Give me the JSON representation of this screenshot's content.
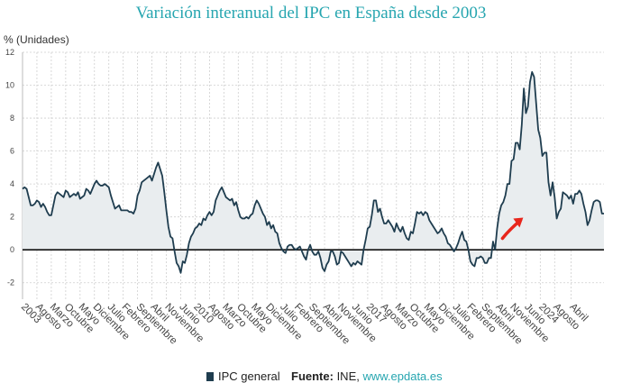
{
  "chart_data": {
    "type": "area",
    "title": "Variación interanual del IPC en España desde 2003",
    "ylabel": "% (Unidades)",
    "xlabel": "",
    "ylim": [
      -3,
      12
    ],
    "yticks": [
      "-2",
      "0",
      "2",
      "4",
      "6",
      "8",
      "10",
      "12"
    ],
    "ytick_values": [
      -2,
      0,
      2,
      4,
      6,
      8,
      10,
      12
    ],
    "grid": true,
    "series": [
      {
        "name": "IPC general",
        "color": "#1f3d4f",
        "start": "2003-01",
        "values": [
          3.7,
          3.8,
          3.7,
          3.2,
          2.7,
          2.7,
          2.8,
          3.0,
          2.9,
          2.6,
          2.8,
          2.6,
          2.3,
          2.1,
          2.1,
          2.7,
          3.3,
          3.5,
          3.4,
          3.3,
          3.2,
          3.6,
          3.5,
          3.2,
          3.3,
          3.4,
          3.3,
          3.5,
          3.1,
          3.2,
          3.3,
          3.7,
          3.6,
          3.4,
          3.7,
          4.0,
          4.2,
          4.0,
          3.9,
          3.9,
          4.0,
          3.9,
          3.8,
          3.3,
          2.9,
          2.5,
          2.6,
          2.7,
          2.4,
          2.4,
          2.4,
          2.4,
          2.3,
          2.3,
          2.2,
          2.5,
          3.3,
          3.6,
          4.1,
          4.2,
          4.3,
          4.4,
          4.5,
          4.2,
          4.6,
          5.0,
          5.3,
          4.9,
          4.5,
          3.5,
          2.4,
          1.4,
          0.8,
          0.7,
          -0.1,
          -0.8,
          -1.0,
          -1.4,
          -0.7,
          -0.8,
          -0.3,
          0.4,
          0.8,
          1.0,
          1.3,
          1.4,
          1.6,
          1.5,
          1.9,
          1.8,
          2.1,
          2.3,
          2.1,
          2.3,
          3.0,
          3.3,
          3.6,
          3.8,
          3.5,
          3.2,
          3.1,
          3.0,
          3.1,
          2.7,
          2.9,
          2.4,
          2.0,
          1.9,
          1.9,
          2.0,
          1.9,
          2.1,
          2.2,
          2.7,
          3.0,
          2.8,
          2.5,
          2.2,
          2.0,
          1.5,
          1.7,
          1.3,
          1.5,
          1.1,
          1.0,
          0.4,
          0.1,
          -0.1,
          -0.2,
          0.2,
          0.3,
          0.3,
          0.1,
          0.0,
          0.1,
          0.2,
          -0.1,
          -0.4,
          -0.6,
          0.0,
          0.3,
          -0.1,
          -0.3,
          -0.3,
          -0.1,
          -0.5,
          -1.1,
          -1.3,
          -0.9,
          -0.7,
          -0.1,
          -0.1,
          -0.4,
          -0.9,
          -0.8,
          -0.1,
          -0.2,
          -0.4,
          -0.6,
          -0.8,
          -1.0,
          -0.8,
          -0.9,
          -0.7,
          -0.8,
          -0.9,
          0.0,
          0.6,
          1.3,
          1.4,
          2.1,
          3.0,
          3.0,
          2.3,
          2.5,
          2.0,
          1.6,
          1.6,
          1.8,
          1.6,
          1.4,
          1.1,
          1.6,
          1.3,
          1.1,
          1.4,
          1.0,
          0.7,
          0.6,
          1.1,
          1.0,
          1.6,
          2.3,
          2.2,
          2.3,
          2.1,
          2.3,
          2.2,
          1.8,
          1.6,
          1.4,
          1.2,
          1.0,
          1.1,
          1.3,
          1.0,
          0.8,
          0.4,
          0.3,
          0.1,
          -0.1,
          0.1,
          0.4,
          0.8,
          1.1,
          0.6,
          0.5,
          0.0,
          -0.7,
          -0.9,
          -1.0,
          -0.5,
          -0.5,
          -0.4,
          -0.5,
          -0.8,
          -0.8,
          -0.5,
          -0.5,
          0.5,
          0.0,
          1.3,
          2.2,
          2.7,
          2.9,
          3.3,
          4.0,
          4.0,
          5.4,
          5.5,
          6.5,
          6.5,
          6.1,
          7.6,
          9.8,
          8.3,
          8.7,
          10.2,
          10.8,
          10.5,
          8.9,
          7.3,
          6.8,
          5.7,
          5.9,
          5.9,
          4.1,
          3.3,
          4.1,
          3.2,
          1.9,
          2.3,
          2.5,
          3.5,
          3.4,
          3.3,
          3.1,
          3.3,
          2.8,
          3.4,
          3.4,
          3.6,
          3.4,
          2.8,
          2.3,
          1.5,
          1.8,
          2.4,
          2.9,
          3.0,
          3.0,
          2.9,
          2.2,
          2.2
        ]
      }
    ],
    "x_tick_labels": [
      {
        "label": "2003",
        "date": "2003-01"
      },
      {
        "label": "Agosto",
        "date": "2003-08"
      },
      {
        "label": "Marzo",
        "date": "2004-03"
      },
      {
        "label": "Octubre",
        "date": "2004-10"
      },
      {
        "label": "Mayo",
        "date": "2005-05"
      },
      {
        "label": "Diciembre",
        "date": "2005-12"
      },
      {
        "label": "Julio",
        "date": "2006-07"
      },
      {
        "label": "Febrero",
        "date": "2007-02"
      },
      {
        "label": "Septiembre",
        "date": "2007-09"
      },
      {
        "label": "Abril",
        "date": "2008-04"
      },
      {
        "label": "Noviembre",
        "date": "2008-11"
      },
      {
        "label": "Junio",
        "date": "2009-06"
      },
      {
        "label": "2010",
        "date": "2010-01"
      },
      {
        "label": "Agosto",
        "date": "2010-08"
      },
      {
        "label": "Marzo",
        "date": "2011-03"
      },
      {
        "label": "Octubre",
        "date": "2011-10"
      },
      {
        "label": "Mayo",
        "date": "2012-05"
      },
      {
        "label": "Diciembre",
        "date": "2012-12"
      },
      {
        "label": "Julio",
        "date": "2013-07"
      },
      {
        "label": "Febrero",
        "date": "2014-02"
      },
      {
        "label": "Septiembre",
        "date": "2014-09"
      },
      {
        "label": "Abril",
        "date": "2015-04"
      },
      {
        "label": "Noviembre",
        "date": "2015-11"
      },
      {
        "label": "Junio",
        "date": "2016-06"
      },
      {
        "label": "2017",
        "date": "2017-01"
      },
      {
        "label": "Agosto",
        "date": "2017-08"
      },
      {
        "label": "Marzo",
        "date": "2018-03"
      },
      {
        "label": "Octubre",
        "date": "2018-10"
      },
      {
        "label": "Mayo",
        "date": "2019-05"
      },
      {
        "label": "Diciembre",
        "date": "2019-12"
      },
      {
        "label": "Julio",
        "date": "2020-07"
      },
      {
        "label": "Febrero",
        "date": "2021-02"
      },
      {
        "label": "Septiembre",
        "date": "2021-09"
      },
      {
        "label": "Abril",
        "date": "2022-04"
      },
      {
        "label": "Noviembre",
        "date": "2022-11"
      },
      {
        "label": "Junio",
        "date": "2023-06"
      },
      {
        "label": "2024",
        "date": "2024-01"
      },
      {
        "label": "Agosto",
        "date": "2024-08"
      },
      {
        "label": "Abril",
        "date": "2025-04"
      }
    ],
    "annotation": {
      "type": "arrow",
      "color": "#e8261c",
      "target_date": "2023-06",
      "target_value": 1.9
    }
  },
  "footer": {
    "legend_label": "IPC general",
    "source_label": "Fuente:",
    "source_text": " INE, ",
    "source_link": "www.epdata.es"
  }
}
